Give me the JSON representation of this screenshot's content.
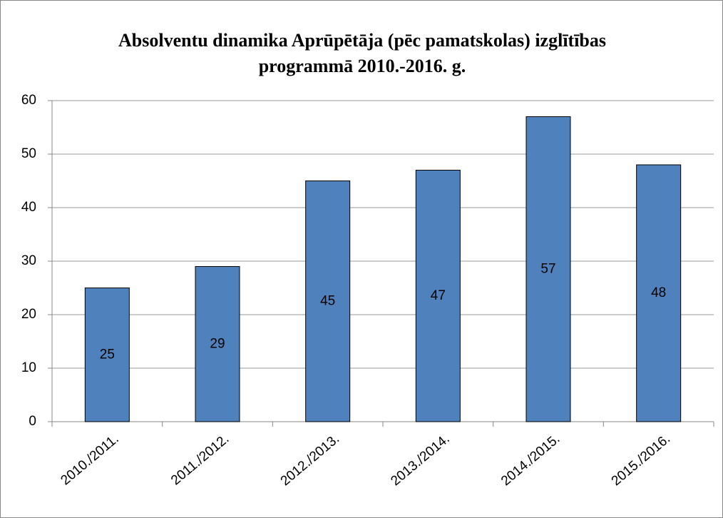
{
  "chart_data": {
    "type": "bar",
    "title": "Absolventu dinamika Aprūpētāja (pēc pamatskolas) izglītības programmā 2010.-2016. g.",
    "categories": [
      "2010./2011.",
      "2011./2012.",
      "2012./2013.",
      "2013./2014.",
      "2014./2015.",
      "2015./2016."
    ],
    "values": [
      25,
      29,
      45,
      47,
      57,
      48
    ],
    "color": "#4f81bd",
    "ylim": [
      0,
      60
    ],
    "yticks": [
      0,
      10,
      20,
      30,
      40,
      50,
      60
    ],
    "grid": true
  }
}
